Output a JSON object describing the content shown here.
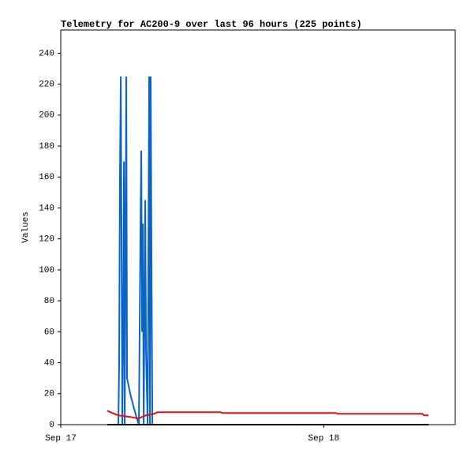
{
  "chart_data": {
    "type": "line",
    "title": "Telemetry for AC200-9 over last 96 hours (225 points)",
    "y_label": "Values",
    "xlim": [
      0,
      36
    ],
    "ylim": [
      0,
      255
    ],
    "xticks": [
      {
        "value": 0,
        "label": "Sep 17"
      },
      {
        "value": 24,
        "label": "Sep 18"
      }
    ],
    "yticks": [
      0,
      20,
      40,
      60,
      80,
      100,
      120,
      140,
      160,
      180,
      200,
      220,
      240
    ],
    "grid": false,
    "series": [
      {
        "color": "#0a64c8",
        "x": [
          5.26,
          5.33,
          5.4,
          5.48,
          5.55,
          5.62,
          5.69,
          5.77,
          5.84,
          5.98,
          6.05,
          6.34,
          6.7,
          6.99,
          7.13,
          7.28,
          7.35,
          7.42,
          7.49,
          7.57,
          7.71,
          7.78,
          7.93,
          8.07,
          8.14,
          8.21,
          8.29,
          8.36
        ],
        "values": [
          0,
          40,
          160,
          225,
          110,
          0,
          55,
          170,
          0,
          225,
          30,
          20,
          10,
          3,
          0,
          130,
          177,
          60,
          130,
          0,
          145,
          48,
          0,
          225,
          0,
          225,
          95,
          0
        ]
      },
      {
        "color": "#e01010",
        "x": [
          4.25,
          4.54,
          5.26,
          6.34,
          7.06,
          7.78,
          8.5,
          8.86,
          14.6,
          14.74,
          25.1,
          25.3,
          33.0,
          33.15,
          33.56
        ],
        "values": [
          9,
          8,
          6,
          5,
          4,
          6,
          7,
          8,
          8,
          7.5,
          7.5,
          7,
          7,
          6,
          6
        ]
      },
      {
        "color": "#000000",
        "x": [
          4.25,
          33.56
        ],
        "values": [
          0,
          0
        ]
      }
    ]
  }
}
